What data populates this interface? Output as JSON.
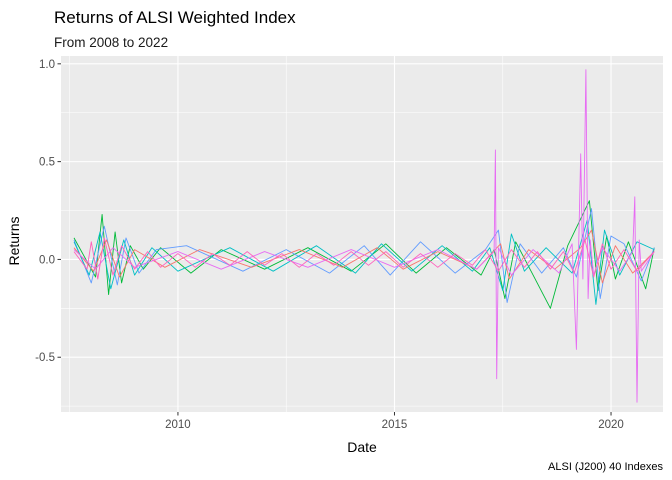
{
  "chart_data": {
    "type": "line",
    "title": "Returns of ALSI Weighted Index",
    "subtitle": "From 2008 to 2022",
    "xlabel": "Date",
    "ylabel": "Returns",
    "caption": "ALSI (J200) 40 Indexes",
    "xlim": [
      2007.3,
      2021.2
    ],
    "ylim": [
      -0.78,
      1.04
    ],
    "x_ticks": [
      {
        "value": 2010,
        "label": "2010"
      },
      {
        "value": 2015,
        "label": "2015"
      },
      {
        "value": 2020,
        "label": "2020"
      }
    ],
    "y_ticks": [
      {
        "value": -0.5,
        "label": "-0.5"
      },
      {
        "value": 0.0,
        "label": "0.0"
      },
      {
        "value": 0.5,
        "label": "0.5"
      },
      {
        "value": 1.0,
        "label": "1.0"
      }
    ],
    "x_minor_ticks": [
      2007.5,
      2012.5,
      2017.5
    ],
    "y_minor_ticks": [
      -0.75,
      -0.25,
      0.25,
      0.75
    ],
    "grid": true,
    "legend": "none",
    "background": "#EBEBEB",
    "grid_color": "#FFFFFF",
    "series_colors": [
      "#F8766D",
      "#00BA38",
      "#619CFF",
      "#00BFC4",
      "#C77CFF",
      "#E76BF3",
      "#A3A500",
      "#FF62BC",
      "#FF6C91"
    ],
    "series": [
      {
        "color": "#00BA38",
        "x": [
          2007.6,
          2008.1,
          2008.25,
          2008.4,
          2008.55,
          2008.7,
          2008.9,
          2009.2,
          2009.6,
          2010.3,
          2011.0,
          2012.0,
          2013.0,
          2014.0,
          2014.8,
          2015.5,
          2016.2,
          2017.0,
          2017.3,
          2017.55,
          2017.8,
          2018.2,
          2018.6,
          2019.0,
          2019.5,
          2019.7,
          2019.9,
          2020.1,
          2020.4,
          2020.8,
          2021.0
        ],
        "y": [
          0.11,
          -0.09,
          0.23,
          -0.18,
          0.14,
          -0.12,
          0.07,
          -0.05,
          0.06,
          -0.07,
          0.05,
          -0.05,
          0.06,
          -0.06,
          0.08,
          -0.07,
          0.06,
          -0.08,
          0.05,
          -0.2,
          0.09,
          -0.08,
          -0.25,
          0.07,
          0.3,
          -0.16,
          0.12,
          -0.1,
          0.09,
          -0.15,
          0.06
        ]
      },
      {
        "color": "#619CFF",
        "x": [
          2007.6,
          2008.0,
          2008.3,
          2008.6,
          2008.8,
          2009.1,
          2009.5,
          2010.2,
          2011.5,
          2012.5,
          2013.5,
          2014.3,
          2014.9,
          2015.6,
          2016.4,
          2017.1,
          2017.4,
          2017.6,
          2017.9,
          2018.4,
          2018.9,
          2019.2,
          2019.55,
          2019.75,
          2020.0,
          2020.3,
          2020.7,
          2021.0
        ],
        "y": [
          0.1,
          -0.12,
          0.17,
          -0.13,
          0.11,
          -0.07,
          0.05,
          0.07,
          -0.06,
          0.05,
          -0.07,
          0.07,
          -0.08,
          0.09,
          -0.07,
          0.05,
          0.15,
          -0.22,
          0.08,
          -0.07,
          0.06,
          -0.09,
          0.26,
          -0.2,
          0.12,
          0.08,
          -0.11,
          0.06
        ]
      },
      {
        "color": "#00BFC4",
        "x": [
          2007.6,
          2007.95,
          2008.2,
          2008.45,
          2008.75,
          2009.0,
          2009.4,
          2010.0,
          2011.2,
          2012.2,
          2013.2,
          2014.1,
          2014.7,
          2015.4,
          2016.1,
          2016.8,
          2017.2,
          2017.5,
          2017.7,
          2018.0,
          2018.5,
          2019.1,
          2019.45,
          2019.65,
          2019.85,
          2020.2,
          2020.6,
          2021.0
        ],
        "y": [
          0.09,
          -0.08,
          0.14,
          -0.15,
          0.1,
          -0.08,
          0.06,
          -0.06,
          0.06,
          -0.06,
          0.07,
          -0.07,
          0.08,
          -0.06,
          0.07,
          -0.06,
          0.06,
          -0.16,
          0.13,
          -0.06,
          0.06,
          -0.07,
          0.2,
          -0.23,
          0.15,
          -0.08,
          0.09,
          0.05
        ]
      },
      {
        "color": "#F8766D",
        "x": [
          2007.6,
          2008.05,
          2008.35,
          2008.65,
          2009.0,
          2009.7,
          2010.5,
          2011.7,
          2012.8,
          2013.8,
          2014.6,
          2015.2,
          2016.0,
          2016.9,
          2017.45,
          2017.65,
          2018.1,
          2018.7,
          2019.3,
          2019.55,
          2019.8,
          2020.1,
          2020.5,
          2021.0
        ],
        "y": [
          0.06,
          -0.06,
          0.1,
          -0.09,
          0.05,
          -0.04,
          0.05,
          -0.04,
          0.05,
          -0.04,
          0.06,
          -0.05,
          0.04,
          -0.05,
          0.08,
          -0.1,
          0.05,
          -0.05,
          0.06,
          0.15,
          -0.12,
          0.07,
          -0.07,
          0.04
        ]
      },
      {
        "color": "#E76BF3",
        "x": [
          2007.6,
          2008.1,
          2008.5,
          2009.0,
          2010.0,
          2011.0,
          2012.0,
          2013.0,
          2014.0,
          2015.0,
          2016.0,
          2016.9,
          2017.3,
          2017.33,
          2017.36,
          2017.4,
          2017.7,
          2018.2,
          2018.8,
          2019.1,
          2019.2,
          2019.3,
          2019.35,
          2019.42,
          2019.47,
          2019.52,
          2019.6,
          2019.8,
          2020.2,
          2020.5,
          2020.55,
          2020.6,
          2020.65,
          2020.7,
          2021.0
        ],
        "y": [
          0.05,
          -0.05,
          0.06,
          -0.04,
          0.04,
          -0.05,
          0.04,
          -0.04,
          0.05,
          -0.04,
          0.05,
          -0.05,
          0.04,
          0.56,
          -0.61,
          0.06,
          -0.08,
          0.05,
          -0.07,
          0.08,
          -0.46,
          0.54,
          -0.1,
          0.97,
          -0.2,
          0.1,
          -0.08,
          0.06,
          -0.06,
          0.04,
          0.32,
          -0.73,
          0.1,
          -0.06,
          0.04
        ]
      },
      {
        "color": "#FF62BC",
        "x": [
          2007.6,
          2007.9,
          2008.0,
          2008.15,
          2008.3,
          2008.5,
          2008.7,
          2009.0,
          2009.3,
          2009.6,
          2010.0,
          2010.4,
          2010.8,
          2011.2,
          2011.6,
          2012.0,
          2012.4,
          2012.8,
          2013.2,
          2013.6,
          2014.0,
          2014.4,
          2014.8,
          2015.2,
          2015.6,
          2016.0,
          2016.4,
          2016.8,
          2017.1,
          2017.4,
          2017.7,
          2018.0,
          2018.3,
          2018.6,
          2018.9,
          2019.15,
          2019.4,
          2019.6,
          2019.8,
          2020.0,
          2020.3,
          2020.6,
          2021.0
        ],
        "y": [
          0.04,
          -0.05,
          0.09,
          -0.1,
          0.11,
          -0.08,
          0.07,
          -0.05,
          0.04,
          -0.04,
          0.03,
          -0.04,
          0.03,
          -0.03,
          0.04,
          -0.03,
          0.03,
          -0.04,
          0.03,
          -0.03,
          0.04,
          -0.03,
          0.04,
          -0.04,
          0.03,
          -0.04,
          0.03,
          -0.03,
          0.05,
          -0.06,
          0.05,
          -0.04,
          0.04,
          -0.05,
          0.04,
          -0.07,
          0.1,
          -0.09,
          0.08,
          -0.05,
          0.05,
          -0.06,
          0.04
        ]
      }
    ]
  }
}
